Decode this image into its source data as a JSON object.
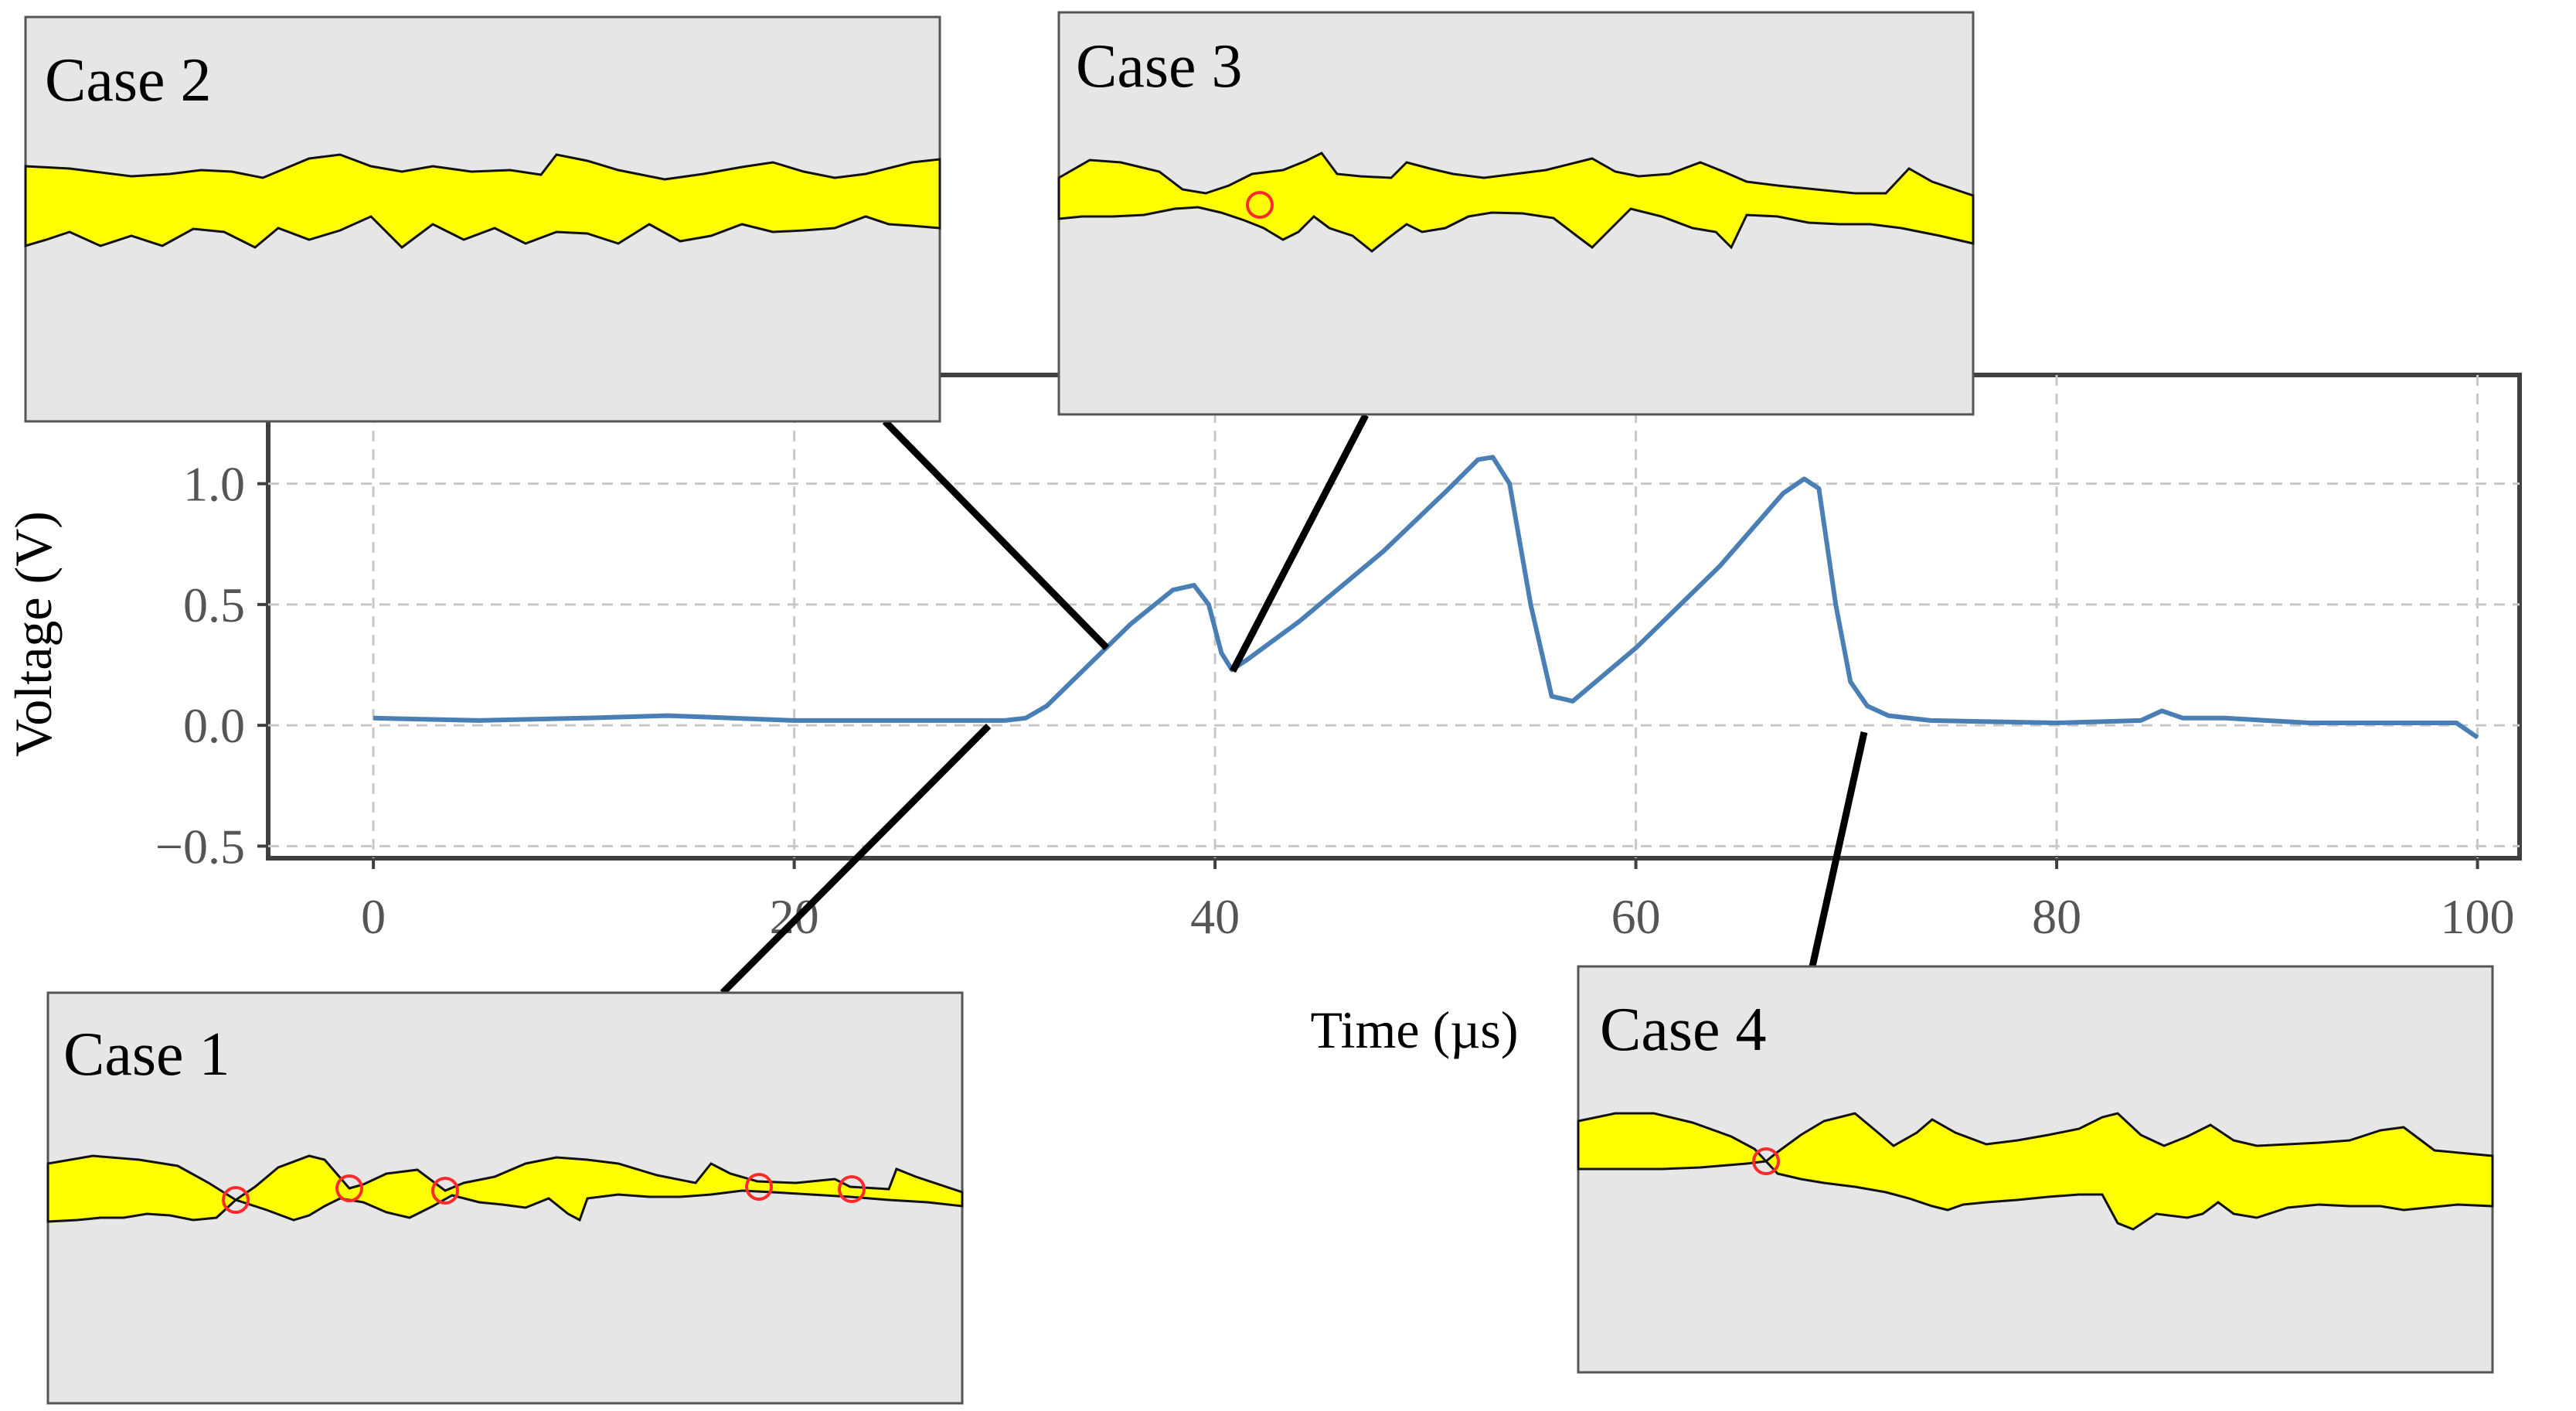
{
  "chart_data": {
    "type": "line",
    "xlabel": "Time (µs)",
    "ylabel": "Voltage (V)",
    "xlim": [
      -5,
      102
    ],
    "ylim": [
      -0.55,
      1.45
    ],
    "x_ticks": [
      0,
      20,
      40,
      60,
      80,
      100
    ],
    "x_tick_labels": [
      "0",
      "20",
      "40",
      "60",
      "80",
      "100"
    ],
    "y_ticks": [
      -0.5,
      0.0,
      0.5,
      1.0
    ],
    "y_tick_labels": [
      "−0.5",
      "0.0",
      "0.5",
      "1.0"
    ],
    "grid": true,
    "series_color": "#4a7fb5",
    "series": [
      {
        "name": "Voltage",
        "x": [
          0,
          5,
          10,
          14,
          20,
          25,
          30,
          31,
          32,
          34,
          36,
          38,
          39,
          39.7,
          40.3,
          40.8,
          41.5,
          44,
          48,
          51,
          52.5,
          53.2,
          54,
          55,
          56,
          57,
          60,
          64,
          67,
          68,
          68.7,
          69.5,
          70.2,
          71,
          72,
          74,
          80,
          84,
          85,
          86,
          88,
          92,
          96,
          99,
          100
        ],
        "y": [
          0.03,
          0.02,
          0.03,
          0.04,
          0.02,
          0.02,
          0.02,
          0.03,
          0.08,
          0.25,
          0.42,
          0.56,
          0.58,
          0.5,
          0.3,
          0.23,
          0.27,
          0.43,
          0.72,
          0.97,
          1.1,
          1.11,
          1.0,
          0.5,
          0.12,
          0.1,
          0.32,
          0.66,
          0.96,
          1.02,
          0.98,
          0.5,
          0.18,
          0.08,
          0.04,
          0.02,
          0.01,
          0.02,
          0.06,
          0.03,
          0.03,
          0.01,
          0.01,
          0.01,
          -0.05
        ]
      }
    ],
    "insets": [
      {
        "label": "Case 1",
        "anchor_x": 30,
        "anchor_y": 0.02,
        "crossing_markers": 5
      },
      {
        "label": "Case 2",
        "anchor_x": 35,
        "anchor_y": 0.38,
        "crossing_markers": 0
      },
      {
        "label": "Case 3",
        "anchor_x": 41,
        "anchor_y": 0.25,
        "crossing_markers": 1
      },
      {
        "label": "Case 4",
        "anchor_x": 71,
        "anchor_y": 0.02,
        "crossing_markers": 1
      }
    ],
    "colors": {
      "inset_background": "#e6e6e6",
      "band_fill": "#ffff00",
      "marker": "#ff2a2a",
      "grid": "#c8c8c8"
    }
  }
}
